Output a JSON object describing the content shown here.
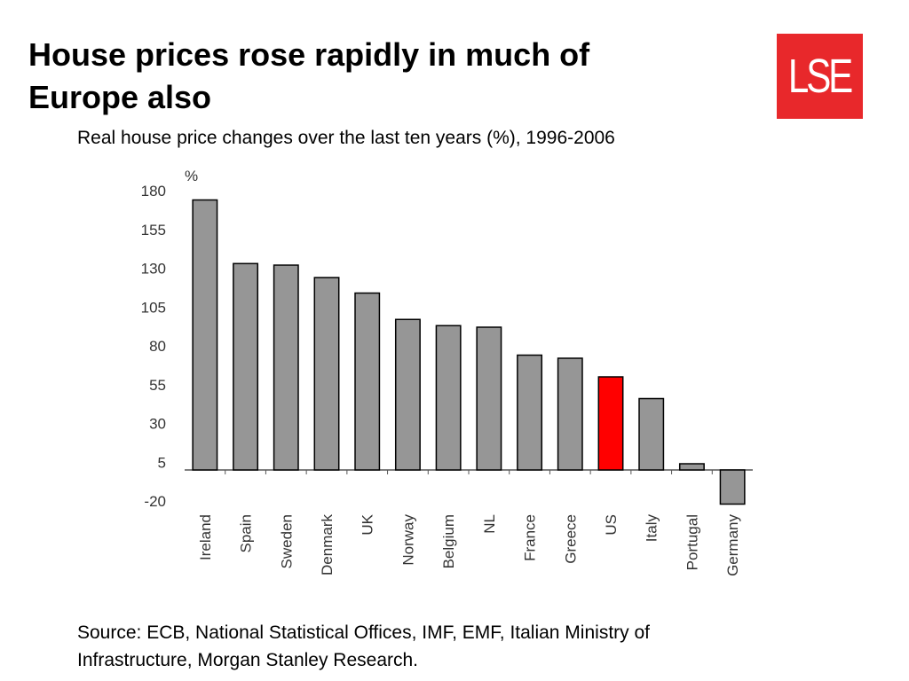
{
  "slide": {
    "title_line1": "House prices rose rapidly in much of",
    "title_line2": "Europe also",
    "logo_text": "LSE",
    "subtitle": "Real house price changes over the last ten years (%), 1996-2006",
    "source_line1": "Source: ECB, National Statistical Offices, IMF, EMF, Italian Ministry of",
    "source_line2": "Infrastructure, Morgan Stanley Research."
  },
  "colors": {
    "logo": "#e8282b",
    "bar": "#969696",
    "highlight": "#ff0000"
  },
  "chart_data": {
    "type": "bar",
    "title": "Real house price changes over the last ten years (%), 1996-2006",
    "ylabel": "%",
    "xlabel": "",
    "categories": [
      "Ireland",
      "Spain",
      "Sweden",
      "Denmark",
      "UK",
      "Norway",
      "Belgium",
      "NL",
      "France",
      "Greece",
      "US",
      "Italy",
      "Portugal",
      "Germany"
    ],
    "values": [
      174,
      133,
      132,
      124,
      114,
      97,
      93,
      92,
      74,
      72,
      60,
      46,
      4,
      -22
    ],
    "highlight_category": "US",
    "ylim": [
      -20,
      180
    ],
    "yticks": [
      180,
      155,
      130,
      105,
      80,
      55,
      30,
      5,
      -20
    ],
    "grid": false,
    "legend": "none"
  }
}
